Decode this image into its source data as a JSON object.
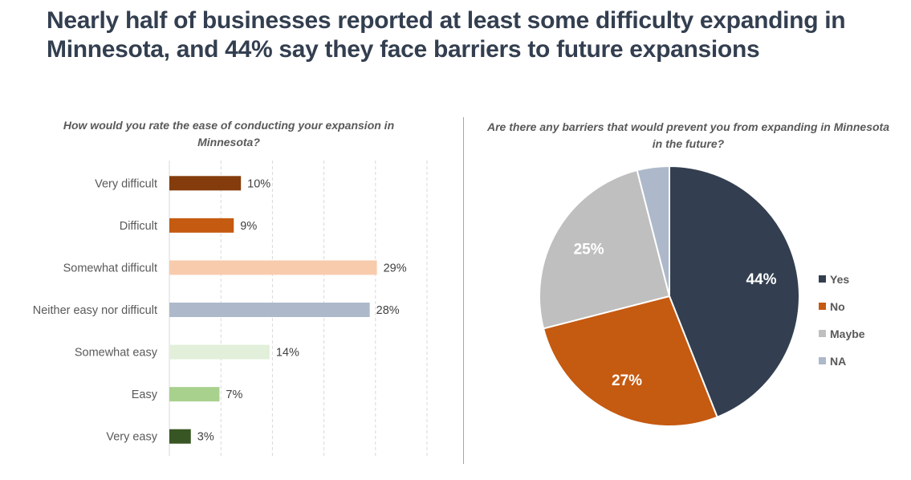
{
  "title": "Nearly half of businesses reported at least some difficulty expanding in Minnesota, and 44% say they face barriers to future expansions",
  "chart_data": [
    {
      "type": "bar",
      "orientation": "horizontal",
      "title": "How would you rate the ease of conducting your expansion in Minnesota?",
      "xlabel": "",
      "ylabel": "",
      "categories": [
        "Very difficult",
        "Difficult",
        "Somewhat difficult",
        "Neither easy nor difficult",
        "Somewhat easy",
        "Easy",
        "Very easy"
      ],
      "values": [
        10,
        9,
        29,
        28,
        14,
        7,
        3
      ],
      "value_labels": [
        "10%",
        "9%",
        "29%",
        "28%",
        "14%",
        "7%",
        "3%"
      ],
      "colors": [
        "#843c0c",
        "#c55a11",
        "#f8cbad",
        "#adb9ca",
        "#e2efda",
        "#a9d18e",
        "#375623"
      ],
      "xlim": [
        0,
        36
      ],
      "gridlines": 5,
      "grid": true,
      "tick_labels_visible": false
    },
    {
      "type": "pie",
      "title": "Are there any barriers that would prevent you from expanding in Minnesota in the future?",
      "labels": [
        "Yes",
        "No",
        "Maybe",
        "NA"
      ],
      "values": [
        44,
        27,
        25,
        4
      ],
      "value_labels": [
        "44%",
        "27%",
        "25%",
        ""
      ],
      "colors": [
        "#333f50",
        "#c55a11",
        "#bfbfbf",
        "#adb9ca"
      ],
      "start": "top",
      "direction": "clockwise",
      "legend_position": "right"
    }
  ]
}
